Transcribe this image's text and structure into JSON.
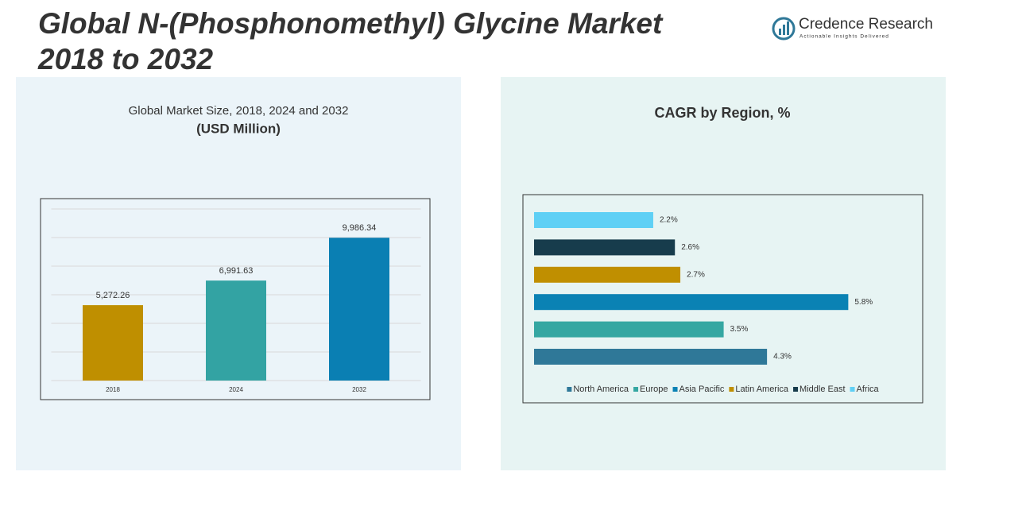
{
  "title": [
    "Global N-(Phosphonomethyl) Glycine Market",
    "2018 to 2032"
  ],
  "logo": {
    "name": "Credence Research",
    "tagline": "Actionable Insights Delivered"
  },
  "chart_data": [
    {
      "type": "bar",
      "title": "Global Market Size, 2018, 2024 and 2032",
      "subtitle": "(USD Million)",
      "categories": [
        "2018",
        "2024",
        "2032"
      ],
      "values": [
        5272.26,
        6991.63,
        9986.34
      ],
      "value_labels": [
        "5,272.26",
        "6,991.63",
        "9,986.34"
      ],
      "colors": [
        "#bf8f00",
        "#33a3a3",
        "#0a7fb3"
      ],
      "ylim": [
        0,
        12000
      ],
      "yticks": [
        0,
        2000,
        4000,
        6000,
        8000,
        10000,
        12000
      ],
      "grid": true
    },
    {
      "type": "hbar",
      "title": "CAGR by Region, %",
      "categories": [
        "North America",
        "Europe",
        "Asia Pacific",
        "Latin America",
        "Middle East",
        "Africa"
      ],
      "values": [
        4.3,
        3.5,
        5.8,
        2.7,
        2.6,
        2.2
      ],
      "value_labels": [
        "4.3%",
        "3.5%",
        "5.8%",
        "2.7%",
        "2.6%",
        "2.2%"
      ],
      "colors": [
        "#2f7898",
        "#35a7a2",
        "#0a82b4",
        "#c08f00",
        "#173c4c",
        "#5fd0f5"
      ],
      "xlim": [
        0,
        6
      ],
      "legend": "bottom"
    }
  ]
}
